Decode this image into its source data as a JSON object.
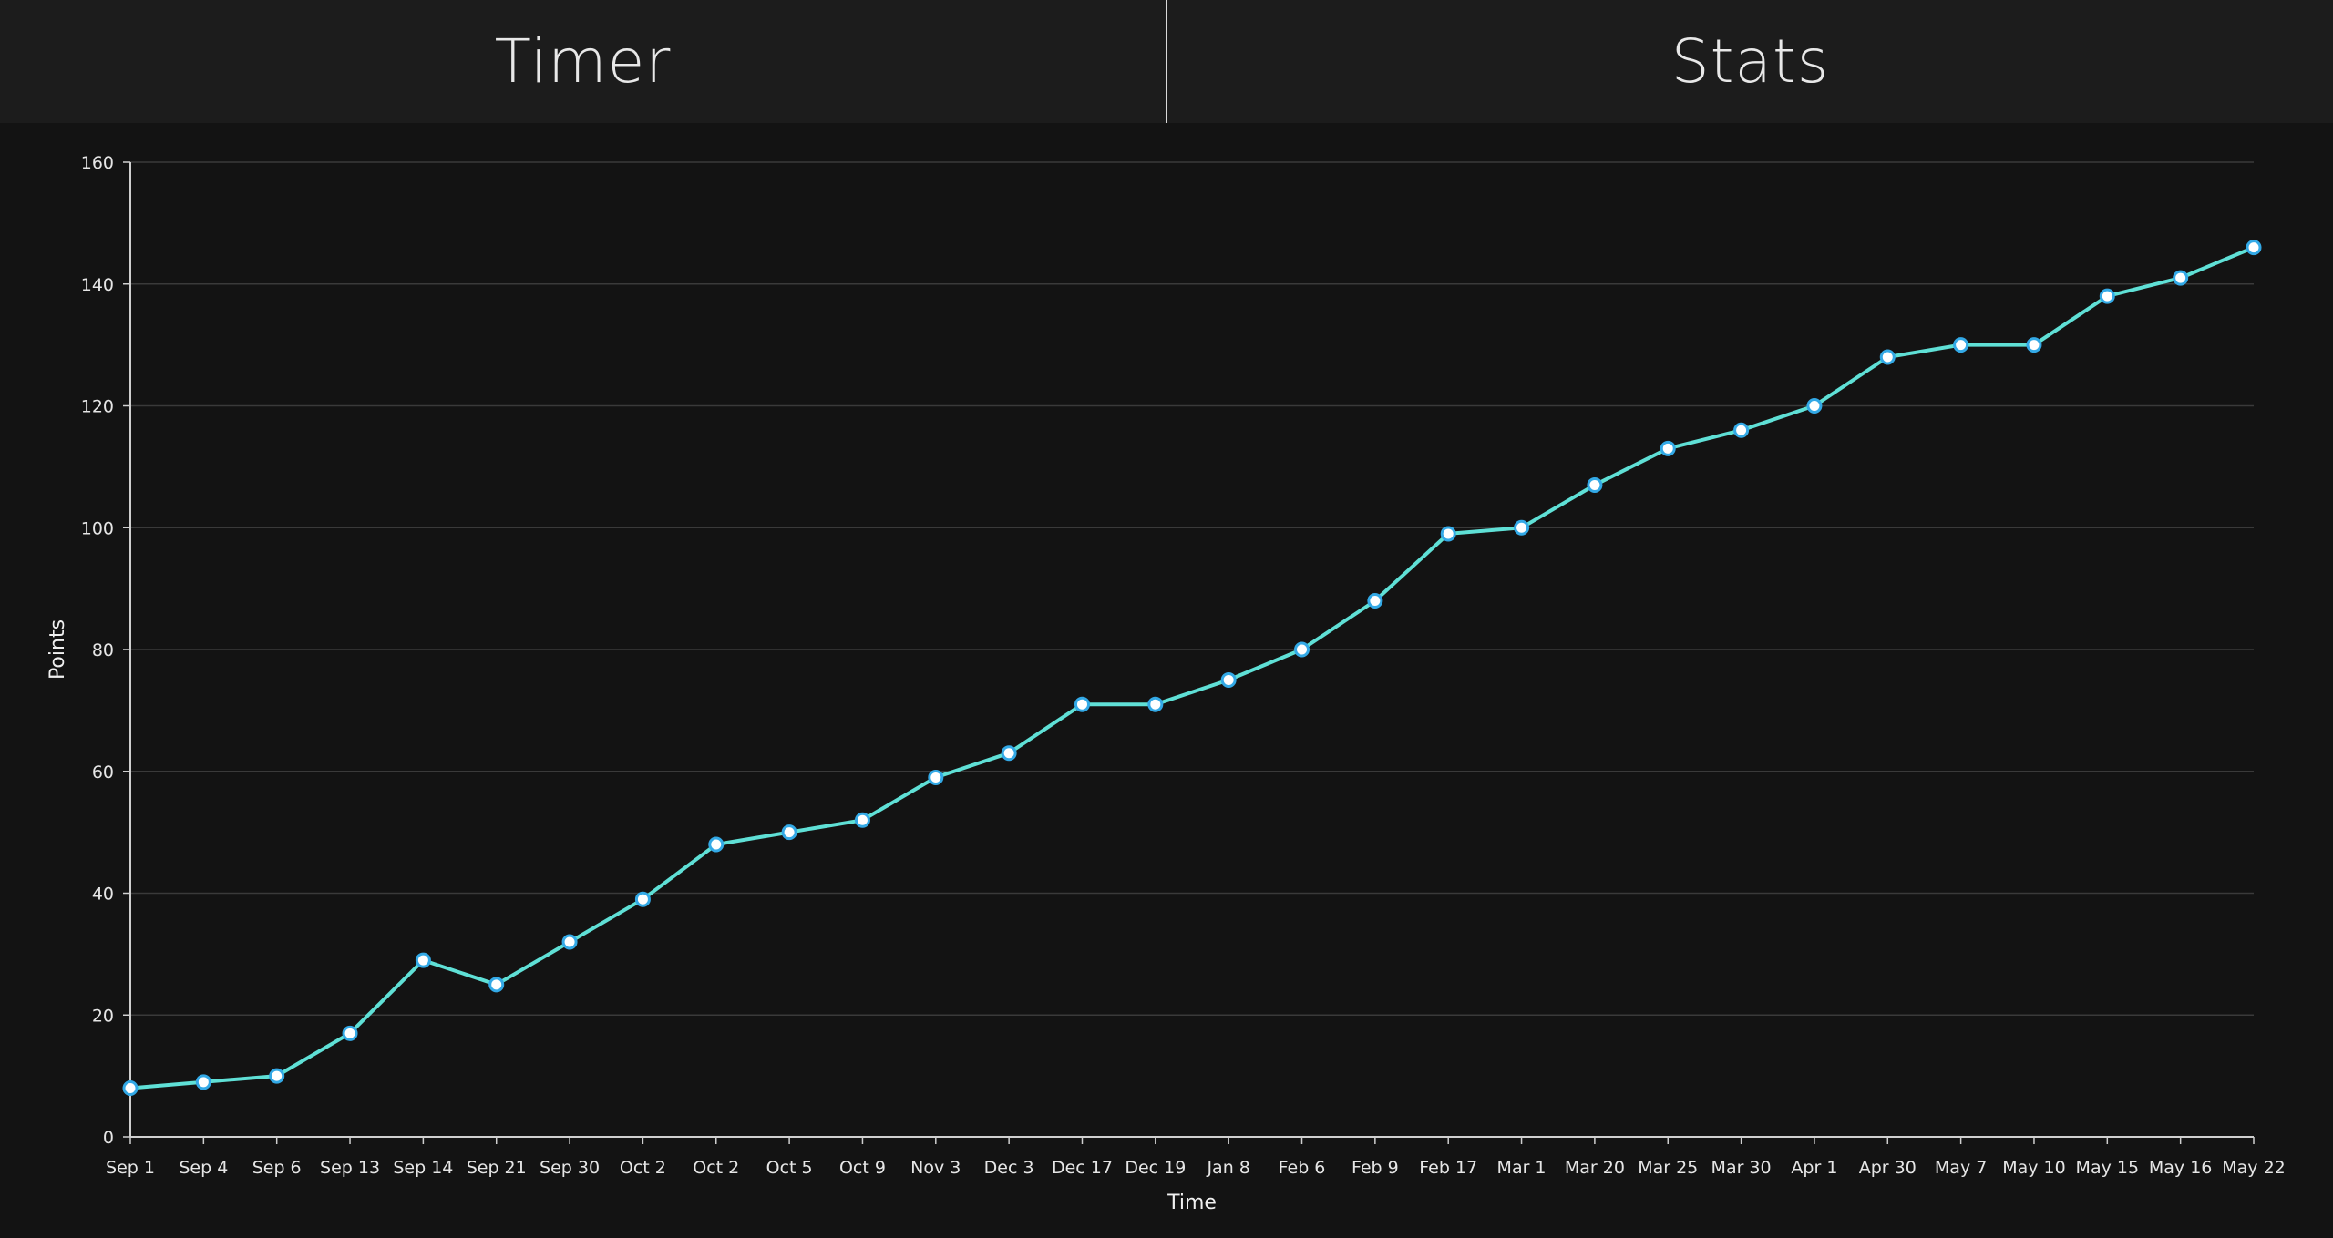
{
  "header": {
    "tabs": [
      {
        "label": "Timer"
      },
      {
        "label": "Stats"
      }
    ]
  },
  "colors": {
    "line": "#5fe0d6",
    "marker_fill": "#ffffff",
    "marker_stroke": "#33a9e6",
    "grid": "#3a3a3a",
    "axis": "#cfcfcf"
  },
  "chart_data": {
    "type": "line",
    "xlabel": "Time",
    "ylabel": "Points",
    "ylim": [
      0,
      160
    ],
    "yticks": [
      0,
      20,
      40,
      60,
      80,
      100,
      120,
      140,
      160
    ],
    "grid": true,
    "categories": [
      "Sep 1",
      "Sep 4",
      "Sep 6",
      "Sep 13",
      "Sep 14",
      "Sep 21",
      "Sep 30",
      "Oct 2",
      "Oct 2",
      "Oct 5",
      "Oct 9",
      "Nov 3",
      "Dec 3",
      "Dec 17",
      "Dec 19",
      "Jan 8",
      "Feb 6",
      "Feb 9",
      "Feb 17",
      "Mar 1",
      "Mar 20",
      "Mar 25",
      "Mar 30",
      "Apr 1",
      "Apr 30",
      "May 7",
      "May 10",
      "May 15",
      "May 16",
      "May 22"
    ],
    "series": [
      {
        "values": [
          8,
          9,
          10,
          17,
          29,
          25,
          32,
          39,
          48,
          50,
          52,
          59,
          63,
          71,
          71,
          75,
          80,
          88,
          99,
          100,
          107,
          113,
          116,
          120,
          128,
          130,
          130,
          138,
          141,
          146
        ]
      }
    ]
  }
}
